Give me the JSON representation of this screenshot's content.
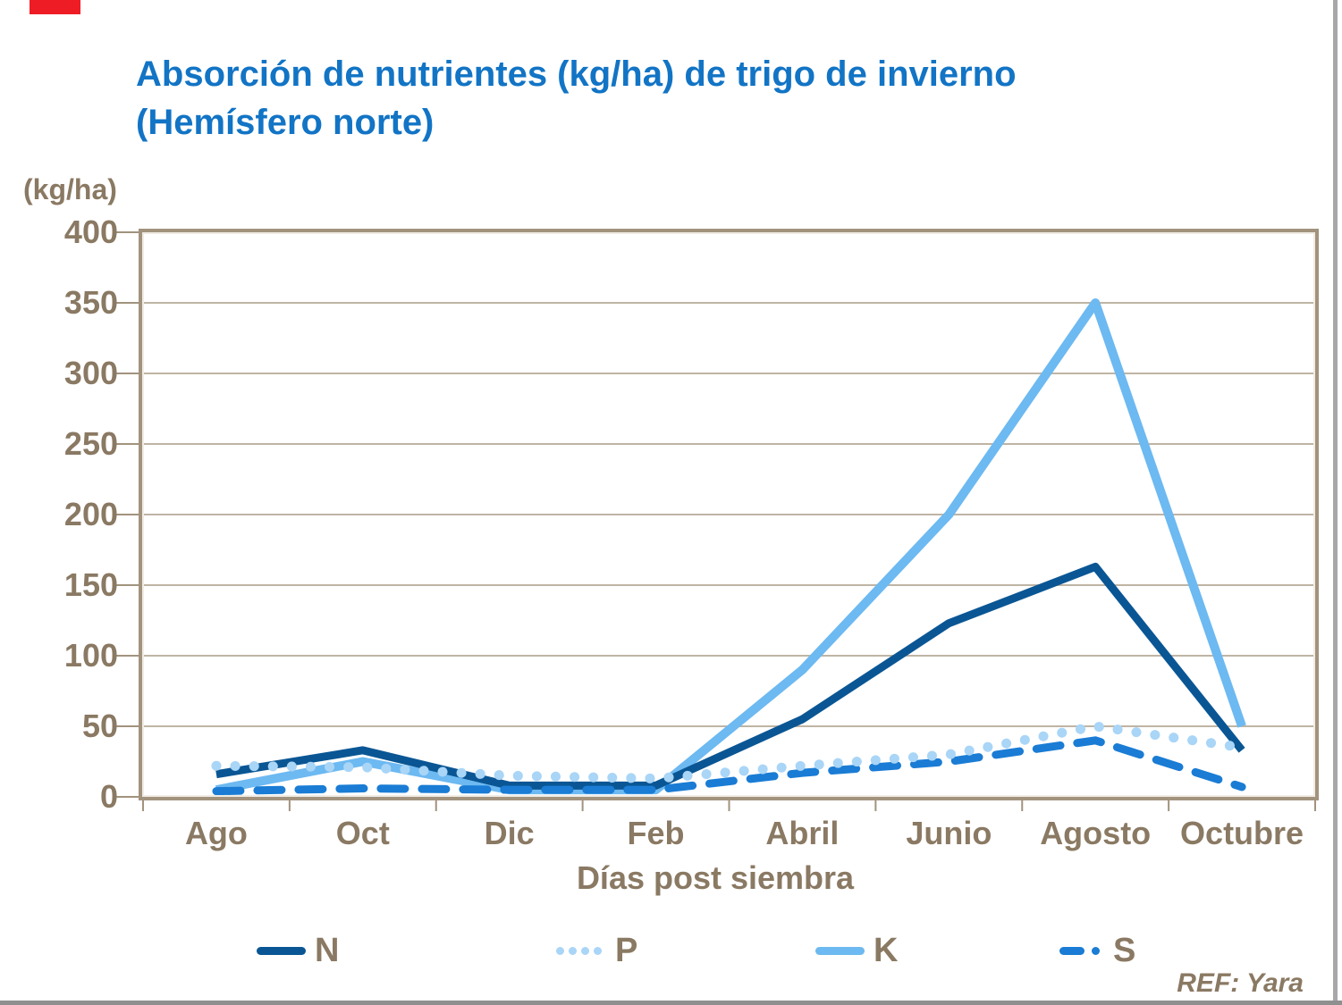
{
  "page": {
    "title_line1": "Absorción de nutrientes (kg/ha) de trigo de invierno",
    "title_line2": "(Hemísfero norte)",
    "y_unit_label": "(kg/ha)",
    "ref_label": "REF: Yara",
    "colors": {
      "title_blue": "#1274c5",
      "axis_brown": "#8a7963",
      "grid_line": "#bfb4a4",
      "frame": "#a2937e",
      "red_mark": "#ee1c25"
    }
  },
  "chart_data": {
    "type": "line",
    "title": "Absorción de nutrientes (kg/ha) de trigo de invierno (Hemísfero norte)",
    "xlabel": "Días post siembra",
    "ylabel": "(kg/ha)",
    "ylim": [
      0,
      400
    ],
    "yticks": [
      0,
      50,
      100,
      150,
      200,
      250,
      300,
      350,
      400
    ],
    "categories": [
      "Ago",
      "Oct",
      "Dic",
      "Feb",
      "Abril",
      "Junio",
      "Agosto",
      "Octubre"
    ],
    "grid": true,
    "legend_position": "bottom",
    "draw_order": [
      "K",
      "N",
      "S",
      "P"
    ],
    "series": [
      {
        "name": "N",
        "style": "solid",
        "color": "#0a5694",
        "values": [
          16,
          33,
          8,
          8,
          55,
          123,
          163,
          33
        ]
      },
      {
        "name": "P",
        "style": "dotted",
        "color": "#a9d5f7",
        "values": [
          22,
          21,
          15,
          13,
          22,
          30,
          50,
          35
        ]
      },
      {
        "name": "K",
        "style": "solid",
        "color": "#6db9f1",
        "values": [
          5,
          25,
          5,
          5,
          90,
          200,
          350,
          50
        ]
      },
      {
        "name": "S",
        "style": "dashed",
        "color": "#1a7cd4",
        "values": [
          4,
          6,
          5,
          5,
          17,
          25,
          40,
          7
        ]
      }
    ],
    "ref": "REF: Yara"
  }
}
